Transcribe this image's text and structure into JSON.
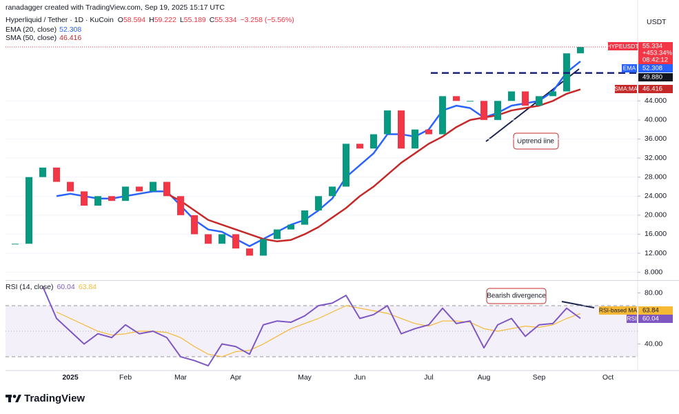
{
  "header": {
    "credit": "ranadagger created with TradingView.com, Sep 19, 2025 15:17 UTC",
    "symbol": "Hyperliquid / Tether · 1D · KuCoin",
    "ohlc": [
      {
        "label": "O",
        "value": 58.594
      },
      {
        "label": "H",
        "value": 59.222
      },
      {
        "label": "L",
        "value": 55.189
      },
      {
        "label": "C",
        "value": 55.334
      }
    ],
    "change": "−3.258 (−5.56%)"
  },
  "chart_data": [
    {
      "type": "candlestick",
      "currency": "USDT",
      "categories": [
        null,
        null,
        null,
        null,
        "2025",
        null,
        null,
        null,
        "Feb",
        null,
        null,
        null,
        "Mar",
        null,
        null,
        null,
        "Apr",
        null,
        null,
        null,
        null,
        "May",
        null,
        null,
        null,
        "Jun",
        null,
        null,
        null,
        null,
        "Jul",
        null,
        null,
        null,
        "Aug",
        null,
        null,
        null,
        "Sep",
        null,
        null,
        null,
        null,
        "Oct",
        null,
        null
      ],
      "series": [
        {
          "name": "HYPEUSDT",
          "color": "#089981",
          "down_color": "#f23645",
          "values": [
            14,
            28,
            30,
            27,
            25,
            22,
            24,
            23,
            26,
            25,
            27,
            24,
            20,
            16,
            14,
            16,
            13,
            11.5,
            15,
            17,
            18,
            21,
            24,
            26,
            35,
            34,
            37,
            42,
            34,
            38,
            37,
            45,
            44,
            44,
            40,
            44,
            46,
            43,
            45,
            46,
            54,
            55.334,
            null,
            null,
            null,
            null
          ]
        },
        {
          "name": "EMA (20, close)",
          "label": "EMA",
          "color": "#2962ff",
          "values": [
            null,
            null,
            null,
            24,
            24.5,
            24,
            23.5,
            23.5,
            24,
            24.5,
            25,
            25,
            22,
            19,
            17,
            16.5,
            15,
            13.5,
            15,
            16.5,
            18,
            19,
            21,
            23.5,
            28,
            30.5,
            33,
            37,
            37,
            36.5,
            38,
            42,
            43,
            42.5,
            40.5,
            41.5,
            43,
            43.5,
            44,
            46,
            50,
            52.308,
            null,
            null,
            null,
            null
          ]
        },
        {
          "name": "SMA (50, close)",
          "label": "SMA:MA",
          "color": "#c62828",
          "values": [
            null,
            null,
            null,
            null,
            null,
            null,
            null,
            null,
            null,
            null,
            null,
            24.5,
            23,
            21,
            19,
            18,
            17,
            16,
            15,
            14.5,
            14.8,
            16,
            17.5,
            19.5,
            21.5,
            24,
            26,
            28.5,
            31,
            33,
            35,
            36.5,
            38.5,
            40,
            40.5,
            41,
            42,
            42.5,
            43,
            44,
            45.5,
            46.416,
            null,
            null,
            null,
            null
          ]
        }
      ],
      "ylim": [
        6.5,
        62.3
      ],
      "yticks": [
        {
          "value": 8,
          "label": "8.000"
        },
        {
          "value": 12,
          "label": "12.000"
        },
        {
          "value": 16,
          "label": "16.000"
        },
        {
          "value": 20,
          "label": "20.000"
        },
        {
          "value": 24,
          "label": "24.000"
        },
        {
          "value": 28,
          "label": "28.000"
        },
        {
          "value": 32,
          "label": "32.000"
        },
        {
          "value": 36,
          "label": "36.000"
        },
        {
          "value": 40,
          "label": "40.000"
        },
        {
          "value": 44,
          "label": "44.000"
        }
      ],
      "grid": true,
      "change_label": "+453.34%",
      "countdown": "08:42:12",
      "levels": [
        {
          "value": 49.88,
          "label": "49.880",
          "color": "#1a237e"
        }
      ],
      "annotations": [
        "Uptrend line"
      ]
    },
    {
      "type": "line",
      "title": "RSI (14, close)",
      "series": [
        {
          "name": "RSI",
          "color": "#7e57c2",
          "values": [
            null,
            null,
            85,
            60,
            50,
            40,
            48,
            45,
            55,
            48,
            50,
            45,
            30,
            27,
            23,
            40,
            38,
            32,
            55,
            58,
            57,
            62,
            70,
            72,
            78,
            60,
            63,
            70,
            48,
            52,
            55,
            68,
            56,
            58,
            37,
            55,
            60,
            46,
            55,
            56,
            68,
            60.04,
            null,
            null,
            null,
            null
          ]
        },
        {
          "name": "RSI-based MA",
          "color": "#f5b935",
          "values": [
            null,
            null,
            null,
            65,
            60,
            55,
            50,
            47,
            48,
            50,
            50,
            49,
            45,
            38,
            32,
            30,
            34,
            35,
            40,
            46,
            52,
            56,
            60,
            65,
            70,
            68,
            66,
            64,
            60,
            56,
            54,
            58,
            58,
            57,
            52,
            50,
            52,
            54,
            53,
            55,
            60,
            63.84,
            null,
            null,
            null,
            null
          ]
        }
      ],
      "ylim": [
        20.3,
        88.9
      ],
      "yticks": [
        {
          "value": 40,
          "label": "40.00"
        },
        {
          "value": 80,
          "label": "80.00"
        }
      ],
      "band": [
        30,
        70
      ],
      "midline": 50,
      "annotations": [
        "Bearish divergence"
      ]
    }
  ],
  "footer": {
    "brand": "TradingView"
  }
}
